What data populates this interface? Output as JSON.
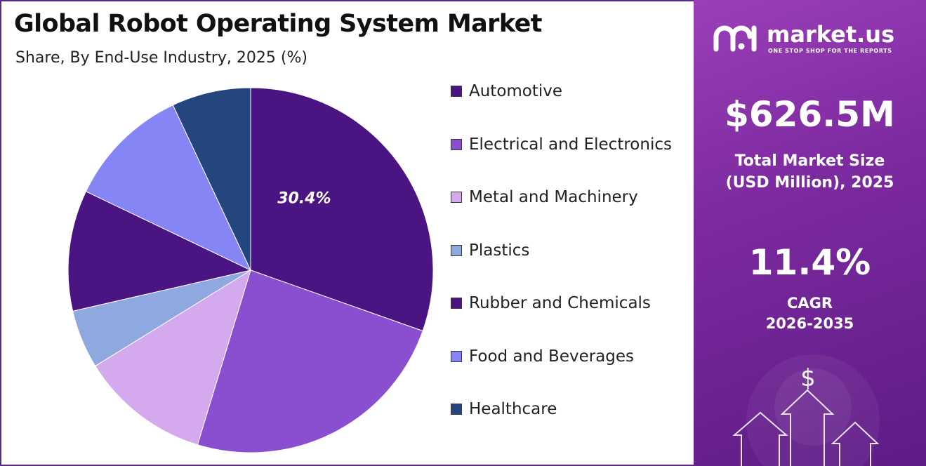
{
  "title": "Global Robot Operating System Market",
  "subtitle": "Share, By End-Use Industry, 2025 (%)",
  "chart_data": {
    "type": "pie",
    "categories": [
      "Automotive",
      "Electrical and Electronics",
      "Metal and Machinery",
      "Plastics",
      "Rubber and Chemicals",
      "Food and Beverages",
      "Healthcare"
    ],
    "values": [
      30.4,
      24.3,
      11.5,
      5.2,
      10.7,
      10.9,
      7.0
    ],
    "data_labels": [
      "30.4%",
      "",
      "",
      "",
      "",
      "",
      ""
    ],
    "colors": [
      "#4a1482",
      "#8a4fd0",
      "#d5a9ee",
      "#8fa8e0",
      "#4a1482",
      "#8585f5",
      "#24457e"
    ],
    "start_angle_deg": 0,
    "direction": "clockwise",
    "legend_placement": "right"
  },
  "brand": {
    "name": "market.us",
    "tagline": "ONE STOP SHOP FOR THE REPORTS",
    "logo_icon": "market-us-logo-icon"
  },
  "stats": {
    "market_size_value": "$626.5M",
    "market_size_label_line1": "Total Market Size",
    "market_size_label_line2": "(USD Million), 2025",
    "cagr_value": "11.4%",
    "cagr_label_line1": "CAGR",
    "cagr_label_line2": "2026-2035"
  },
  "decor": {
    "dollar_symbol": "$",
    "icons": [
      "up-arrow-icon",
      "dollar-icon"
    ]
  }
}
